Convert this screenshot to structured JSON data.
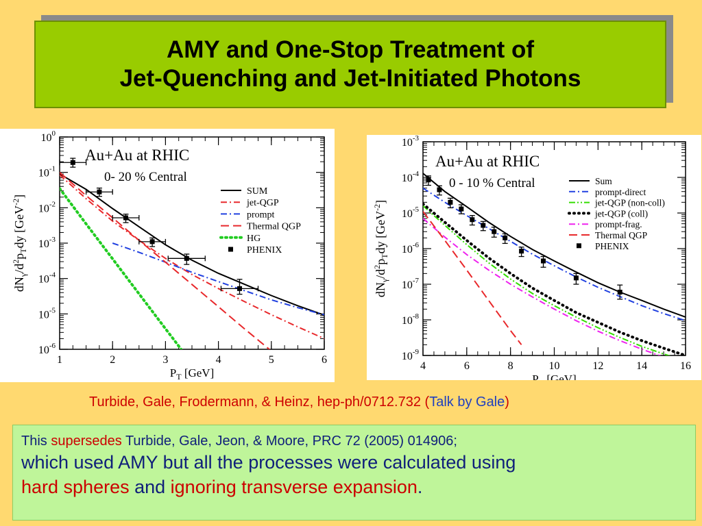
{
  "title": {
    "line1": "AMY and One-Stop Treatment of",
    "line2": "Jet-Quenching and Jet-Initiated Photons"
  },
  "chart_data": [
    {
      "type": "line",
      "annotation_line1": "Au+Au at RHIC",
      "annotation_line2": "0- 20 % Central",
      "xlabel": "P_T [GeV]",
      "ylabel": "dN_γ/d²p_T dy [GeV⁻²]",
      "xlim": [
        1,
        6
      ],
      "ylim_log10": [
        -6,
        0
      ],
      "log_y": true,
      "x_ticks": [
        "1",
        "2",
        "3",
        "4",
        "5",
        "6"
      ],
      "y_ticks": [
        "10^-6",
        "10^-5",
        "10^-4",
        "10^-3",
        "10^-2",
        "10^-1",
        "10^0"
      ],
      "legend_position": "top-right",
      "series": [
        {
          "name": "SUM",
          "color": "#000000",
          "dash": "solid",
          "x": [
            1,
            1.5,
            2,
            2.5,
            3,
            3.5,
            4,
            4.5,
            5,
            5.5,
            6
          ],
          "y": [
            0.09,
            0.033,
            0.0095,
            0.0029,
            0.0009,
            0.00033,
            0.00014,
            6.8e-05,
            3.3e-05,
            1.7e-05,
            9.3e-06
          ]
        },
        {
          "name": "jet-QGP",
          "color": "#e8282b",
          "dash": "dashdot",
          "x": [
            1,
            1.5,
            2,
            2.5,
            3,
            3.5,
            4,
            4.5,
            5,
            5.5,
            6
          ],
          "y": [
            0.085,
            0.018,
            0.0042,
            0.0012,
            0.00037,
            0.00013,
            5.2e-05,
            2.2e-05,
            9.5e-06,
            4.3e-06,
            2e-06
          ]
        },
        {
          "name": "prompt",
          "color": "#2040e0",
          "dash": "dashdot",
          "x": [
            2,
            2.5,
            3,
            3.5,
            4,
            4.5,
            5,
            5.5,
            6
          ],
          "y": [
            0.001,
            0.00055,
            0.00029,
            0.00015,
            8.2e-05,
            4.5e-05,
            2.5e-05,
            1.5e-05,
            9.5e-06
          ]
        },
        {
          "name": "Thermal QGP",
          "color": "#e8282b",
          "dash": "dashed",
          "x": [
            1,
            1.5,
            2,
            2.5,
            3,
            3.5,
            4,
            4.5,
            5,
            5.2
          ],
          "y": [
            0.1,
            0.022,
            0.0052,
            0.0012,
            0.00029,
            6.8e-05,
            1.6e-05,
            3.7e-06,
            9e-07,
            5e-07
          ]
        },
        {
          "name": "HG",
          "color": "#22cc22",
          "dash": "dotted",
          "x": [
            1,
            1.5,
            2,
            2.5,
            3,
            3.5,
            3.6
          ],
          "y": [
            0.035,
            0.0035,
            0.00036,
            3.7e-05,
            3.8e-06,
            4e-07,
            2e-07
          ]
        }
      ],
      "data_points": {
        "name": "PHENIX",
        "color": "#000000",
        "x": [
          1.25,
          1.75,
          2.25,
          2.75,
          3.4,
          4.4
        ],
        "y": [
          0.19,
          0.028,
          0.0052,
          0.0011,
          0.00037,
          5.2e-05
        ],
        "x_err": [
          0.25,
          0.25,
          0.25,
          0.25,
          0.35,
          0.35
        ],
        "y_err_low": [
          0.14,
          0.021,
          0.0038,
          0.0008,
          0.00025,
          3.6e-05
        ],
        "y_err_high": [
          0.25,
          0.036,
          0.0066,
          0.0014,
          0.00049,
          9.5e-05
        ]
      }
    },
    {
      "type": "line",
      "annotation_line1": "Au+Au at RHIC",
      "annotation_line2": "0 - 10 % Central",
      "xlabel": "P_T [GeV]",
      "ylabel": "dN_γ/d²p_T dy [GeV⁻²]",
      "xlim": [
        4,
        16
      ],
      "ylim_log10": [
        -9,
        -3
      ],
      "log_y": true,
      "x_ticks": [
        "4",
        "6",
        "8",
        "10",
        "12",
        "14",
        "16"
      ],
      "y_ticks": [
        "10^-9",
        "10^-8",
        "10^-7",
        "10^-6",
        "10^-5",
        "10^-4",
        "10^-3"
      ],
      "legend_position": "top-right",
      "series": [
        {
          "name": "Sum",
          "color": "#000000",
          "dash": "solid",
          "x": [
            4,
            5,
            6,
            7,
            8,
            9,
            10,
            11,
            12,
            13,
            14,
            15,
            16
          ],
          "y": [
            0.00013,
            4e-05,
            1.5e-05,
            5.5e-06,
            2.2e-06,
            9.5e-07,
            4.5e-07,
            2.2e-07,
            1.1e-07,
            6e-08,
            3.5e-08,
            2e-08,
            1.2e-08
          ]
        },
        {
          "name": "prompt-direct",
          "color": "#2040e0",
          "dash": "dashdot",
          "x": [
            4,
            5,
            6,
            7,
            8,
            9,
            10,
            11,
            12,
            13,
            14,
            15,
            16
          ],
          "y": [
            5e-05,
            2e-05,
            8.5e-06,
            3.7e-06,
            1.6e-06,
            7e-07,
            3.3e-07,
            1.6e-07,
            8.2e-08,
            4.5e-08,
            2.5e-08,
            1.5e-08,
            9.5e-09
          ]
        },
        {
          "name": "jet-QGP (non-coll)",
          "color": "#33dd00",
          "dash": "dashdotdot",
          "x": [
            4,
            5,
            6,
            7,
            8,
            9,
            10,
            11,
            12,
            13,
            14,
            15,
            16
          ],
          "y": [
            1.6e-05,
            4.5e-06,
            1.3e-06,
            4e-07,
            1.4e-07,
            5.5e-08,
            2.5e-08,
            1.2e-08,
            6e-09,
            3.2e-09,
            1.8e-09,
            1.1e-09,
            7e-10
          ]
        },
        {
          "name": "jet-QGP (coll)",
          "color": "#000000",
          "dash": "dots",
          "x": [
            4,
            5,
            6,
            7,
            8,
            9,
            10,
            11,
            12,
            13,
            14,
            15,
            16
          ],
          "y": [
            1.8e-05,
            5.5e-06,
            1.7e-06,
            5.5e-07,
            2e-07,
            7.8e-08,
            3.5e-08,
            1.6e-08,
            8.5e-09,
            4.5e-09,
            2.6e-09,
            1.6e-09,
            1e-09
          ]
        },
        {
          "name": "prompt-frag.",
          "color": "#ee22ee",
          "dash": "dashdot",
          "x": [
            4,
            5,
            6,
            7,
            8,
            9,
            10,
            11,
            12,
            13,
            14,
            15,
            16
          ],
          "y": [
            7e-06,
            2.1e-06,
            6.8e-07,
            2.5e-07,
            1e-07,
            4.4e-08,
            2e-08,
            9.5e-09,
            4.8e-09,
            2.6e-09,
            1.5e-09,
            9e-10,
            5.5e-10
          ]
        },
        {
          "name": "Thermal QGP",
          "color": "#e8282b",
          "dash": "dashed",
          "x": [
            4,
            5,
            6,
            7,
            8,
            8.5
          ],
          "y": [
            1.1e-05,
            1.7e-06,
            2.5e-07,
            3.5e-08,
            5e-09,
            2e-09
          ]
        }
      ],
      "data_points": {
        "name": "PHENIX",
        "color": "#000000",
        "x": [
          4.25,
          4.75,
          5.25,
          5.75,
          6.25,
          6.75,
          7.25,
          7.75,
          8.5,
          9.5,
          11,
          13
        ],
        "y": [
          8.5e-05,
          4.5e-05,
          2e-05,
          1.3e-05,
          6.5e-06,
          4.5e-06,
          3e-06,
          2e-06,
          8.5e-07,
          4.5e-07,
          1.5e-07,
          6e-08
        ],
        "x_err": [
          0,
          0,
          0,
          0,
          0,
          0,
          0,
          0,
          0,
          0,
          0,
          0
        ],
        "y_err_low": [
          6e-05,
          3.2e-05,
          1.4e-05,
          9.5e-06,
          4.6e-06,
          3.2e-06,
          2.1e-06,
          1.4e-06,
          6e-07,
          3e-07,
          1e-07,
          3.8e-08
        ],
        "y_err_high": [
          0.00011,
          5.8e-05,
          2.6e-05,
          1.7e-05,
          8.5e-06,
          5.8e-06,
          4e-06,
          2.6e-06,
          1.1e-06,
          6e-07,
          2e-07,
          9.5e-08
        ]
      }
    }
  ],
  "citation": {
    "text": "Turbide, Gale, Frodermann, & Heinz, hep-ph/0712.732 (",
    "link": "Talk by Gale",
    "close": ")"
  },
  "note": {
    "line1_a": "This ",
    "line1_b": "supersedes",
    "line1_c": " Turbide, Gale, Jeon, & Moore, PRC 72 (2005) 014906;",
    "line2": "which used AMY but all the processes were calculated using",
    "line3_a": "hard spheres",
    "line3_b": " and ",
    "line3_c": "ignoring transverse expansion",
    "line3_d": "."
  }
}
